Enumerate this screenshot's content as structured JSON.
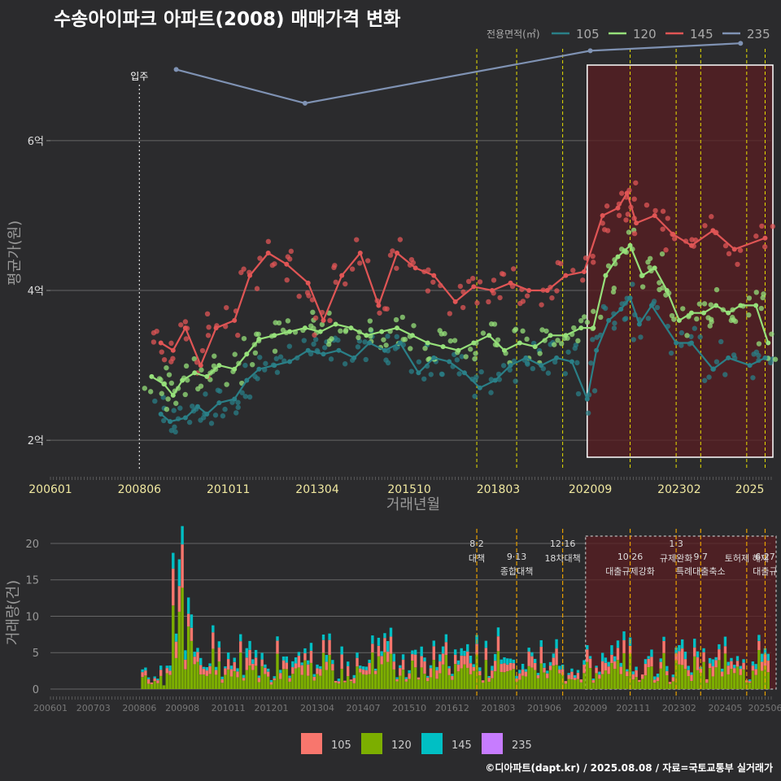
{
  "title": "수송아이파크 아파트(2008) 매매가격 변화",
  "credit": "©디아파트(dapt.kr) / 2025.08.08 / 자료=국토교통부 실거래가",
  "colors": {
    "105": "#2a7f87",
    "120": "#96e07a",
    "145": "#e05555",
    "235": "#7f92b3"
  },
  "bar_colors": {
    "105": "#f8766d",
    "120": "#7cae00",
    "145": "#00bfc4",
    "235": "#c77cff"
  },
  "chart_data": [
    {
      "type": "line",
      "ylabel": "평균가(원)",
      "xlabel": "거래년월",
      "legend_title": "전용면적(㎡)",
      "legend_position": "top-right",
      "y_unit": "억",
      "ylim": [
        1.6,
        7.4
      ],
      "xlim": [
        "2006-01",
        "2025-08"
      ],
      "yticks": [
        {
          "v": 2,
          "label": "2억"
        },
        {
          "v": 4,
          "label": "4억"
        },
        {
          "v": 6,
          "label": "6억"
        }
      ],
      "xticks": [
        "200601",
        "200806",
        "201011",
        "201304",
        "201510",
        "201803",
        "202009",
        "202302",
        "2025"
      ],
      "series": [
        {
          "name": "105",
          "points": [
            [
              "2009-01",
              2.35
            ],
            [
              "2009-04",
              2.25
            ],
            [
              "2009-09",
              2.3
            ],
            [
              "2010-01",
              2.45
            ],
            [
              "2010-04",
              2.35
            ],
            [
              "2010-08",
              2.5
            ],
            [
              "2011-01",
              2.55
            ],
            [
              "2011-05",
              2.8
            ],
            [
              "2011-09",
              2.95
            ],
            [
              "2012-02",
              3.0
            ],
            [
              "2012-07",
              3.05
            ],
            [
              "2013-01",
              3.2
            ],
            [
              "2013-06",
              3.15
            ],
            [
              "2013-11",
              3.2
            ],
            [
              "2014-04",
              3.1
            ],
            [
              "2014-09",
              3.3
            ],
            [
              "2015-02",
              3.2
            ],
            [
              "2015-07",
              3.3
            ],
            [
              "2016-01",
              2.9
            ],
            [
              "2016-06",
              3.1
            ],
            [
              "2016-11",
              3.05
            ],
            [
              "2017-04",
              2.9
            ],
            [
              "2017-09",
              2.7
            ],
            [
              "2018-02",
              2.8
            ],
            [
              "2018-07",
              3.0
            ],
            [
              "2018-12",
              3.1
            ],
            [
              "2019-05",
              3.0
            ],
            [
              "2019-10",
              3.1
            ],
            [
              "2020-03",
              3.05
            ],
            [
              "2020-08",
              2.55
            ],
            [
              "2020-11",
              3.2
            ],
            [
              "2021-03",
              3.6
            ],
            [
              "2021-07",
              3.75
            ],
            [
              "2021-10",
              3.9
            ],
            [
              "2022-01",
              3.55
            ],
            [
              "2022-05",
              3.8
            ],
            [
              "2023-01",
              3.3
            ],
            [
              "2023-06",
              3.3
            ],
            [
              "2024-01",
              2.95
            ],
            [
              "2024-06",
              3.1
            ],
            [
              "2025-01",
              3.0
            ],
            [
              "2025-06",
              3.1
            ]
          ]
        },
        {
          "name": "120",
          "points": [
            [
              "2008-10",
              2.85
            ],
            [
              "2009-02",
              2.75
            ],
            [
              "2009-05",
              2.6
            ],
            [
              "2009-08",
              2.8
            ],
            [
              "2009-12",
              2.9
            ],
            [
              "2010-04",
              2.85
            ],
            [
              "2010-08",
              3.0
            ],
            [
              "2011-01",
              2.95
            ],
            [
              "2011-05",
              3.15
            ],
            [
              "2011-09",
              3.35
            ],
            [
              "2012-02",
              3.4
            ],
            [
              "2012-07",
              3.45
            ],
            [
              "2012-12",
              3.5
            ],
            [
              "2013-05",
              3.45
            ],
            [
              "2013-10",
              3.55
            ],
            [
              "2014-03",
              3.5
            ],
            [
              "2014-08",
              3.4
            ],
            [
              "2015-01",
              3.45
            ],
            [
              "2015-06",
              3.5
            ],
            [
              "2015-11",
              3.4
            ],
            [
              "2016-04",
              3.3
            ],
            [
              "2016-09",
              3.25
            ],
            [
              "2017-02",
              3.2
            ],
            [
              "2017-07",
              3.3
            ],
            [
              "2017-12",
              3.4
            ],
            [
              "2018-05",
              3.2
            ],
            [
              "2018-10",
              3.3
            ],
            [
              "2019-03",
              3.25
            ],
            [
              "2019-08",
              3.4
            ],
            [
              "2020-01",
              3.4
            ],
            [
              "2020-06",
              3.5
            ],
            [
              "2020-10",
              3.5
            ],
            [
              "2021-02",
              4.2
            ],
            [
              "2021-06",
              4.45
            ],
            [
              "2021-10",
              4.6
            ],
            [
              "2022-02",
              4.2
            ],
            [
              "2022-06",
              4.3
            ],
            [
              "2022-10",
              4.0
            ],
            [
              "2023-02",
              3.6
            ],
            [
              "2023-06",
              3.7
            ],
            [
              "2023-10",
              3.7
            ],
            [
              "2024-02",
              3.8
            ],
            [
              "2024-06",
              3.7
            ],
            [
              "2024-10",
              3.8
            ],
            [
              "2025-03",
              3.8
            ],
            [
              "2025-07",
              3.3
            ]
          ]
        },
        {
          "name": "145",
          "points": [
            [
              "2009-01",
              3.3
            ],
            [
              "2009-05",
              3.2
            ],
            [
              "2009-09",
              3.5
            ],
            [
              "2010-02",
              3.0
            ],
            [
              "2010-07",
              3.5
            ],
            [
              "2011-01",
              3.6
            ],
            [
              "2011-06",
              4.2
            ],
            [
              "2011-12",
              4.5
            ],
            [
              "2012-06",
              4.35
            ],
            [
              "2013-01",
              4.1
            ],
            [
              "2013-06",
              3.6
            ],
            [
              "2013-12",
              4.2
            ],
            [
              "2014-06",
              4.5
            ],
            [
              "2014-12",
              3.8
            ],
            [
              "2015-06",
              4.5
            ],
            [
              "2015-12",
              4.3
            ],
            [
              "2016-06",
              4.2
            ],
            [
              "2017-01",
              3.85
            ],
            [
              "2017-07",
              4.05
            ],
            [
              "2018-01",
              4.0
            ],
            [
              "2018-07",
              4.1
            ],
            [
              "2019-01",
              4.0
            ],
            [
              "2019-07",
              4.0
            ],
            [
              "2020-01",
              4.2
            ],
            [
              "2020-07",
              4.25
            ],
            [
              "2021-01",
              5.0
            ],
            [
              "2021-06",
              5.1
            ],
            [
              "2021-09",
              5.3
            ],
            [
              "2021-12",
              4.9
            ],
            [
              "2022-06",
              5.0
            ],
            [
              "2022-12",
              4.75
            ],
            [
              "2023-06",
              4.6
            ],
            [
              "2024-01",
              4.8
            ],
            [
              "2024-08",
              4.55
            ],
            [
              "2025-06",
              4.7
            ]
          ]
        },
        {
          "name": "235",
          "points": [
            [
              "2009-06",
              6.95
            ],
            [
              "2012-12",
              6.5
            ],
            [
              "2020-09",
              7.2
            ],
            [
              "2024-10",
              7.3
            ]
          ]
        }
      ],
      "annotations": [
        {
          "x": "2008-06",
          "label": "입주",
          "style": "white-dotted"
        }
      ],
      "policy_lines": [
        "2017-08",
        "2018-09",
        "2019-12",
        "2021-10",
        "2023-01",
        "2023-09",
        "2024-12",
        "2025-06"
      ],
      "highlight_range": [
        "2020-08",
        "2025-08"
      ]
    },
    {
      "type": "bar",
      "ylabel": "거래량(건)",
      "ylim": [
        0,
        21
      ],
      "yticks": [
        0,
        5,
        10,
        15,
        20
      ],
      "xticks": [
        "200601",
        "200703",
        "200806",
        "200908",
        "201011",
        "201201",
        "201304",
        "201407",
        "201510",
        "201612",
        "201803",
        "201906",
        "202009",
        "202111",
        "202302",
        "202405",
        "202506"
      ],
      "legend": [
        "105",
        "120",
        "145",
        "235"
      ],
      "legend_position": "bottom",
      "policy_labels": [
        {
          "x": "2017-08",
          "date": "8·2",
          "name": "대책"
        },
        {
          "x": "2018-09",
          "date": "9·13",
          "name": "종합대책"
        },
        {
          "x": "2019-12",
          "date": "12·16",
          "name": "18차대책"
        },
        {
          "x": "2021-10",
          "date": "10·26",
          "name": "대출규제강화"
        },
        {
          "x": "2023-01",
          "date": "1·3",
          "name": "규제완화"
        },
        {
          "x": "2023-09",
          "date": "9·7",
          "name": "특례대출축소"
        },
        {
          "x": "2024-12",
          "date": "",
          "name": "토허제 해제"
        },
        {
          "x": "2025-06",
          "date": "6·27",
          "name": "대출규"
        }
      ]
    }
  ]
}
